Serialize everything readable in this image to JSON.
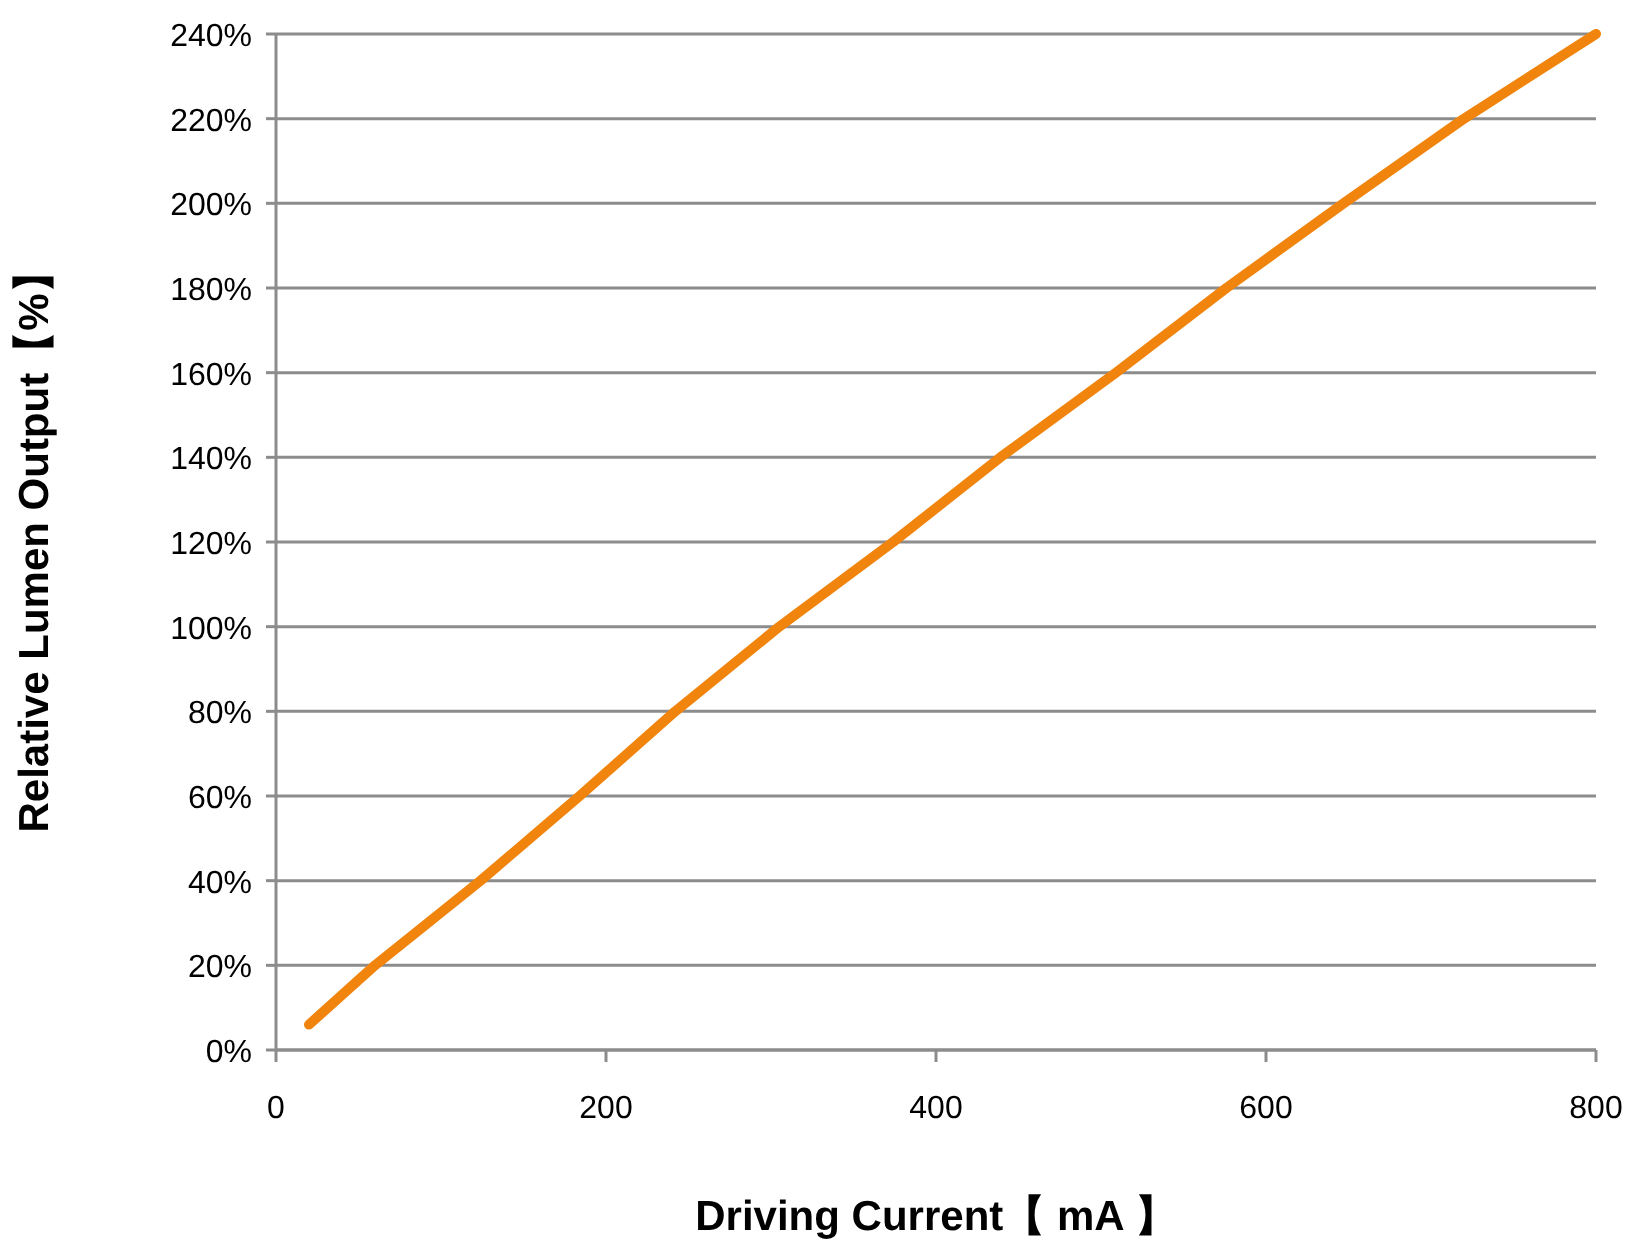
{
  "chart_data": {
    "type": "line",
    "xlabel": "Driving Current【 mA 】",
    "ylabel": "Relative Lumen Output【%】",
    "x": [
      20,
      60,
      124,
      184,
      242,
      305,
      374,
      439,
      509,
      576,
      647,
      720,
      800
    ],
    "series": [
      {
        "color": "#f0840c",
        "values": [
          6,
          20,
          40,
          60,
          80,
          100,
          120,
          140,
          160,
          180,
          200,
          220,
          240
        ]
      }
    ],
    "xlim": [
      0,
      800
    ],
    "xticks": [
      0,
      200,
      400,
      600,
      800
    ],
    "ylim": [
      0,
      240
    ],
    "yticks": [
      {
        "value": 0,
        "label": "0%"
      },
      {
        "value": 20,
        "label": "20%"
      },
      {
        "value": 40,
        "label": "40%"
      },
      {
        "value": 60,
        "label": "60%"
      },
      {
        "value": 80,
        "label": "80%"
      },
      {
        "value": 100,
        "label": "100%"
      },
      {
        "value": 120,
        "label": "120%"
      },
      {
        "value": 140,
        "label": "140%"
      },
      {
        "value": 160,
        "label": "160%"
      },
      {
        "value": 180,
        "label": "180%"
      },
      {
        "value": 200,
        "label": "200%"
      },
      {
        "value": 220,
        "label": "220%"
      },
      {
        "value": 240,
        "label": "240%"
      }
    ],
    "grid": "y",
    "line_style": "solid"
  }
}
